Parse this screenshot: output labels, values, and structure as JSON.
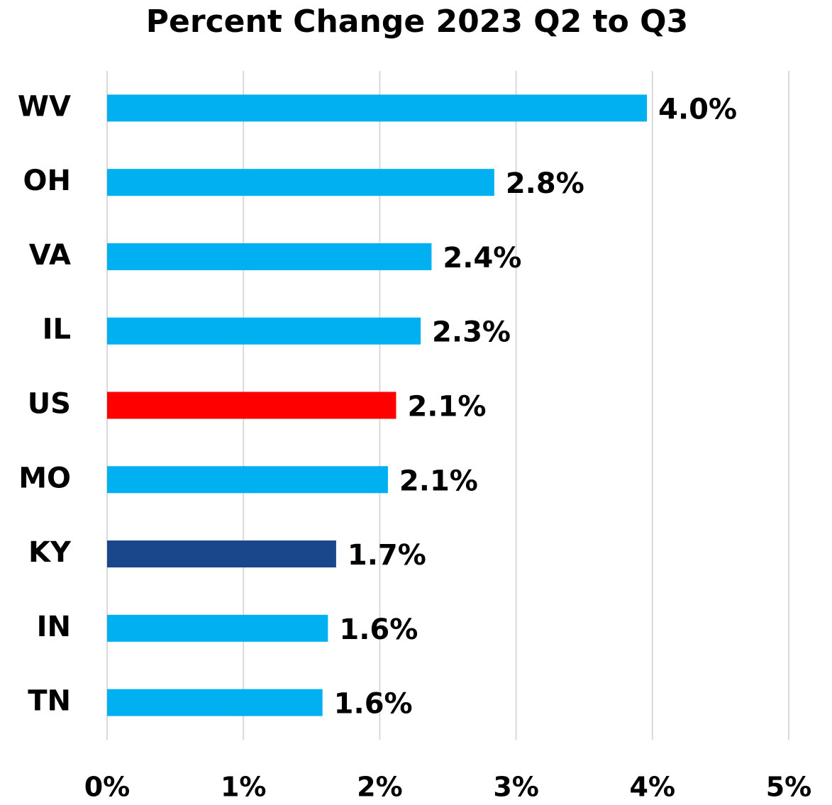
{
  "chart_data": {
    "type": "bar",
    "orientation": "horizontal",
    "title": "Percent Change 2023 Q2 to Q3",
    "categories": [
      "WV",
      "OH",
      "VA",
      "IL",
      "US",
      "MO",
      "KY",
      "IN",
      "TN"
    ],
    "values": [
      3.96,
      2.84,
      2.38,
      2.3,
      2.12,
      2.06,
      1.68,
      1.62,
      1.58
    ],
    "value_labels": [
      "4.0%",
      "2.8%",
      "2.4%",
      "2.3%",
      "2.1%",
      "2.1%",
      "1.7%",
      "1.6%",
      "1.6%"
    ],
    "colors": [
      "#00b0f0",
      "#00b0f0",
      "#00b0f0",
      "#00b0f0",
      "#ff0000",
      "#00b0f0",
      "#1a468c",
      "#00b0f0",
      "#00b0f0"
    ],
    "xlim": [
      0,
      5
    ],
    "xticks": [
      {
        "value": 0,
        "label": "0%"
      },
      {
        "value": 1,
        "label": "1%"
      },
      {
        "value": 2,
        "label": "2%"
      },
      {
        "value": 3,
        "label": "3%"
      },
      {
        "value": 4,
        "label": "4%"
      },
      {
        "value": 5,
        "label": "5%"
      }
    ],
    "grid": true
  }
}
